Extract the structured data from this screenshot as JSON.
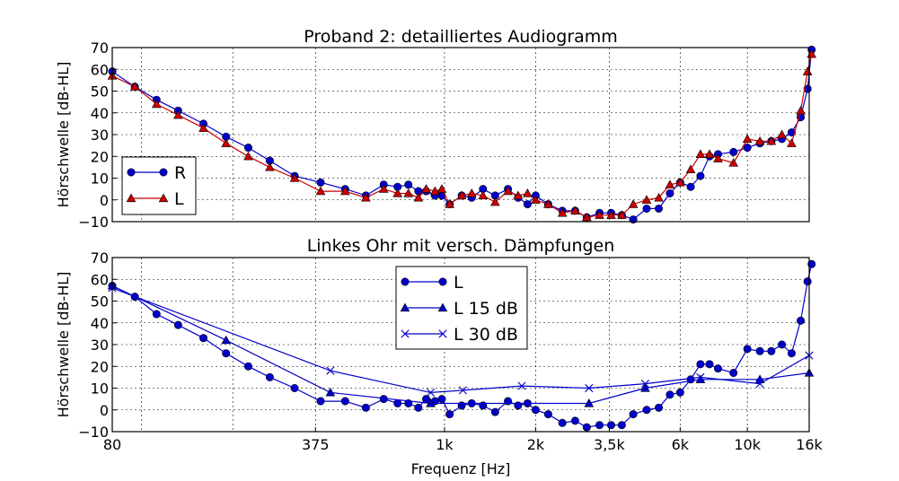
{
  "chart_data": [
    {
      "type": "line",
      "title": "Proband 2: detailliertes Audiogramm",
      "xlabel": "",
      "ylabel": "Hörschwelle [dB-HL]",
      "xscale": "log",
      "xlim": [
        80,
        16000
      ],
      "ylim": [
        -10,
        70
      ],
      "yticks": [
        "70",
        "60",
        "50",
        "40",
        "30",
        "20",
        "10",
        "0",
        "−10"
      ],
      "grid": true,
      "legend_position": "lower left",
      "series": [
        {
          "name": "R",
          "color": "#0000cc",
          "marker": "circle",
          "x": [
            80,
            95,
            112,
            132,
            160,
            190,
            225,
            265,
            320,
            390,
            470,
            550,
            630,
            700,
            760,
            820,
            870,
            930,
            980,
            1040,
            1140,
            1230,
            1340,
            1470,
            1620,
            1750,
            1880,
            2000,
            2200,
            2450,
            2700,
            2950,
            3250,
            3550,
            3850,
            4200,
            4650,
            5100,
            5550,
            6000,
            6500,
            7000,
            7500,
            8000,
            9000,
            10000,
            11000,
            12000,
            13000,
            14000,
            15000,
            15800,
            16300
          ],
          "y": [
            59,
            52,
            46,
            41,
            35,
            29,
            24,
            18,
            11,
            8,
            5,
            2,
            7,
            6,
            7,
            4,
            4,
            2,
            2,
            -2,
            2,
            1,
            5,
            2,
            5,
            1,
            -2,
            2,
            -2,
            -5,
            -5,
            -8,
            -6,
            -6,
            -7,
            -9,
            -4,
            -4,
            3,
            8,
            6,
            11,
            20,
            21,
            22,
            24,
            26,
            27,
            28,
            31,
            38,
            51,
            69
          ]
        },
        {
          "name": "L",
          "color": "#cc0000",
          "marker": "triangle",
          "x": [
            80,
            95,
            112,
            132,
            160,
            190,
            225,
            265,
            320,
            390,
            470,
            550,
            630,
            700,
            760,
            820,
            870,
            930,
            980,
            1040,
            1140,
            1230,
            1340,
            1470,
            1620,
            1750,
            1880,
            2000,
            2200,
            2450,
            2700,
            2950,
            3250,
            3550,
            3850,
            4200,
            4650,
            5100,
            5550,
            6000,
            6500,
            7000,
            7500,
            8000,
            9000,
            10000,
            11000,
            12000,
            13000,
            14000,
            15000,
            15800,
            16300
          ],
          "y": [
            57,
            52,
            44,
            39,
            33,
            26,
            20,
            15,
            10,
            4,
            4,
            1,
            5,
            3,
            3,
            1,
            5,
            4,
            5,
            -2,
            2,
            3,
            2,
            -1,
            4,
            2,
            3,
            0,
            -2,
            -6,
            -5,
            -8,
            -7,
            -7,
            -7,
            -2,
            0,
            1,
            7,
            8,
            14,
            21,
            21,
            19,
            17,
            28,
            27,
            27,
            30,
            26,
            41,
            59,
            67
          ]
        }
      ]
    },
    {
      "type": "line",
      "title": "Linkes Ohr mit versch. Dämpfungen",
      "xlabel": "Frequenz [Hz]",
      "ylabel": "Hörschwelle [dB-HL]",
      "xscale": "log",
      "xlim": [
        80,
        16000
      ],
      "ylim": [
        -10,
        70
      ],
      "xticks": [
        {
          "value": 80,
          "label": "80"
        },
        {
          "value": 375,
          "label": "375"
        },
        {
          "value": 1000,
          "label": "1k"
        },
        {
          "value": 2000,
          "label": "2k"
        },
        {
          "value": 3500,
          "label": "3,5k"
        },
        {
          "value": 6000,
          "label": "6k"
        },
        {
          "value": 10000,
          "label": "10k"
        },
        {
          "value": 16000,
          "label": "16k"
        }
      ],
      "yticks": [
        "70",
        "60",
        "50",
        "40",
        "30",
        "20",
        "10",
        "0",
        "−10"
      ],
      "grid": true,
      "legend_position": "upper center",
      "series": [
        {
          "name": "L",
          "color": "#0000cc",
          "marker": "circle",
          "x": [
            80,
            95,
            112,
            132,
            160,
            190,
            225,
            265,
            320,
            390,
            470,
            550,
            630,
            700,
            760,
            820,
            870,
            930,
            980,
            1040,
            1140,
            1230,
            1340,
            1470,
            1620,
            1750,
            1880,
            2000,
            2200,
            2450,
            2700,
            2950,
            3250,
            3550,
            3850,
            4200,
            4650,
            5100,
            5550,
            6000,
            6500,
            7000,
            7500,
            8000,
            9000,
            10000,
            11000,
            12000,
            13000,
            14000,
            15000,
            15800,
            16300
          ],
          "y": [
            57,
            52,
            44,
            39,
            33,
            26,
            20,
            15,
            10,
            4,
            4,
            1,
            5,
            3,
            3,
            1,
            5,
            4,
            5,
            -2,
            2,
            3,
            2,
            -1,
            4,
            2,
            3,
            0,
            -2,
            -6,
            -5,
            -8,
            -7,
            -7,
            -7,
            -2,
            0,
            1,
            7,
            8,
            14,
            21,
            21,
            19,
            17,
            28,
            27,
            27,
            30,
            26,
            41,
            59,
            67
          ]
        },
        {
          "name": "L 15 dB",
          "color": "#0000cc",
          "marker": "triangle",
          "x": [
            80,
            190,
            420,
            900,
            3000,
            4600,
            7000,
            11000,
            16000
          ],
          "y": [
            57,
            32,
            8,
            3,
            3,
            10,
            14,
            14,
            17
          ]
        },
        {
          "name": "L 30 dB",
          "color": "#0000cc",
          "marker": "x",
          "x": [
            80,
            420,
            900,
            1150,
            1800,
            3000,
            4600,
            7000,
            11000,
            16000
          ],
          "y": [
            56,
            18,
            8,
            9,
            11,
            10,
            12,
            15,
            12,
            25
          ]
        }
      ]
    }
  ]
}
